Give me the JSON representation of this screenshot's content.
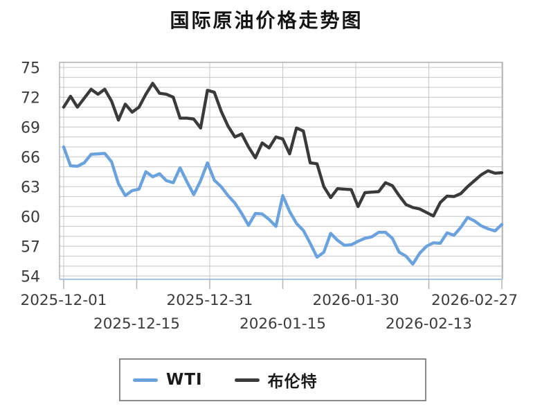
{
  "title": "国际原油价格走势图",
  "chart_data": {
    "type": "line",
    "title": "国际原油价格走势图",
    "x_tick_labels": [
      "2025-12-01",
      "2025-12-15",
      "2025-12-31",
      "2026-01-15",
      "2026-01-30",
      "2026-02-13",
      "2026-02-27"
    ],
    "y_ticks": [
      54,
      57,
      60,
      63,
      66,
      69,
      72,
      75
    ],
    "ylim": [
      54,
      75.6
    ],
    "grid": {
      "horizontal_step": 1,
      "vertical_at_ticks": true
    },
    "legend_position": "bottom",
    "series": [
      {
        "name": "WTI",
        "color": "#6AA2DE",
        "values": [
          67.0,
          65.1,
          65.05,
          65.4,
          66.25,
          66.3,
          66.35,
          65.5,
          63.3,
          62.1,
          62.6,
          62.75,
          64.5,
          64.0,
          64.3,
          63.6,
          63.4,
          64.9,
          63.5,
          62.2,
          63.6,
          65.4,
          63.65,
          63.0,
          62.1,
          61.35,
          60.3,
          59.1,
          60.3,
          60.25,
          59.7,
          59.0,
          62.1,
          60.5,
          59.3,
          58.6,
          57.3,
          55.9,
          56.4,
          58.3,
          57.6,
          57.1,
          57.15,
          57.5,
          57.8,
          57.95,
          58.4,
          58.4,
          57.8,
          56.4,
          56.0,
          55.2,
          56.3,
          57.0,
          57.35,
          57.3,
          58.35,
          58.1,
          58.9,
          59.9,
          59.55,
          59.05,
          58.75,
          58.55,
          59.2
        ]
      },
      {
        "name": "布伦特",
        "color": "#3A3A3A",
        "values": [
          71.0,
          72.1,
          71.0,
          71.9,
          72.8,
          72.3,
          72.8,
          71.6,
          69.7,
          71.3,
          70.5,
          71.0,
          72.3,
          73.4,
          72.4,
          72.3,
          72.0,
          69.9,
          69.9,
          69.8,
          68.9,
          72.7,
          72.5,
          70.6,
          69.1,
          68.0,
          68.3,
          67.0,
          65.9,
          67.4,
          66.9,
          68.0,
          67.8,
          66.3,
          68.9,
          68.6,
          65.4,
          65.3,
          63.0,
          61.9,
          62.8,
          62.75,
          62.7,
          61.0,
          62.4,
          62.45,
          62.5,
          63.4,
          63.1,
          62.1,
          61.2,
          60.9,
          60.75,
          60.4,
          60.05,
          61.4,
          62.05,
          62.0,
          62.3,
          63.0,
          63.6,
          64.2,
          64.6,
          64.35,
          64.4
        ]
      }
    ]
  },
  "legend": {
    "wti_label": "WTI",
    "brent_label": "布伦特"
  },
  "colors": {
    "wti": "#6AA2DE",
    "brent": "#3A3A3A",
    "gridline": "#c6c6c6",
    "frame": "#aeaeae",
    "bottom_axis": "#a8c4e4",
    "tick": "#b0b0b0",
    "tick_text": "#3b3b3b"
  }
}
